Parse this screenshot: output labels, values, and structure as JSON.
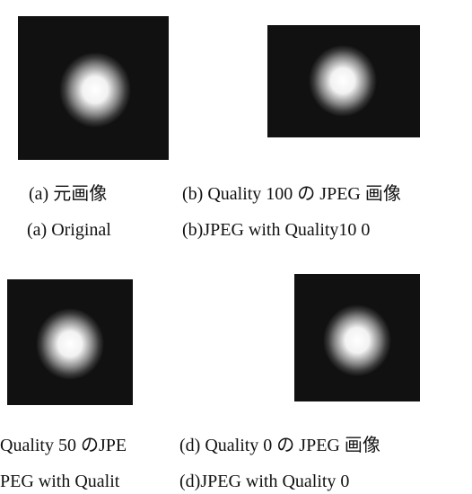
{
  "figures": [
    {
      "caption_ja": "(a) 元画像",
      "caption_en": "(a) Original"
    },
    {
      "caption_ja": "(b) Quality 100 の JPEG 画像",
      "caption_en": "(b)JPEG with Quality10 0"
    },
    {
      "caption_ja": "Quality 50 のJPE",
      "caption_en": "PEG with Qualit"
    },
    {
      "caption_ja": "(d) Quality 0 の JPEG 画像",
      "caption_en": "(d)JPEG with Quality 0"
    }
  ]
}
